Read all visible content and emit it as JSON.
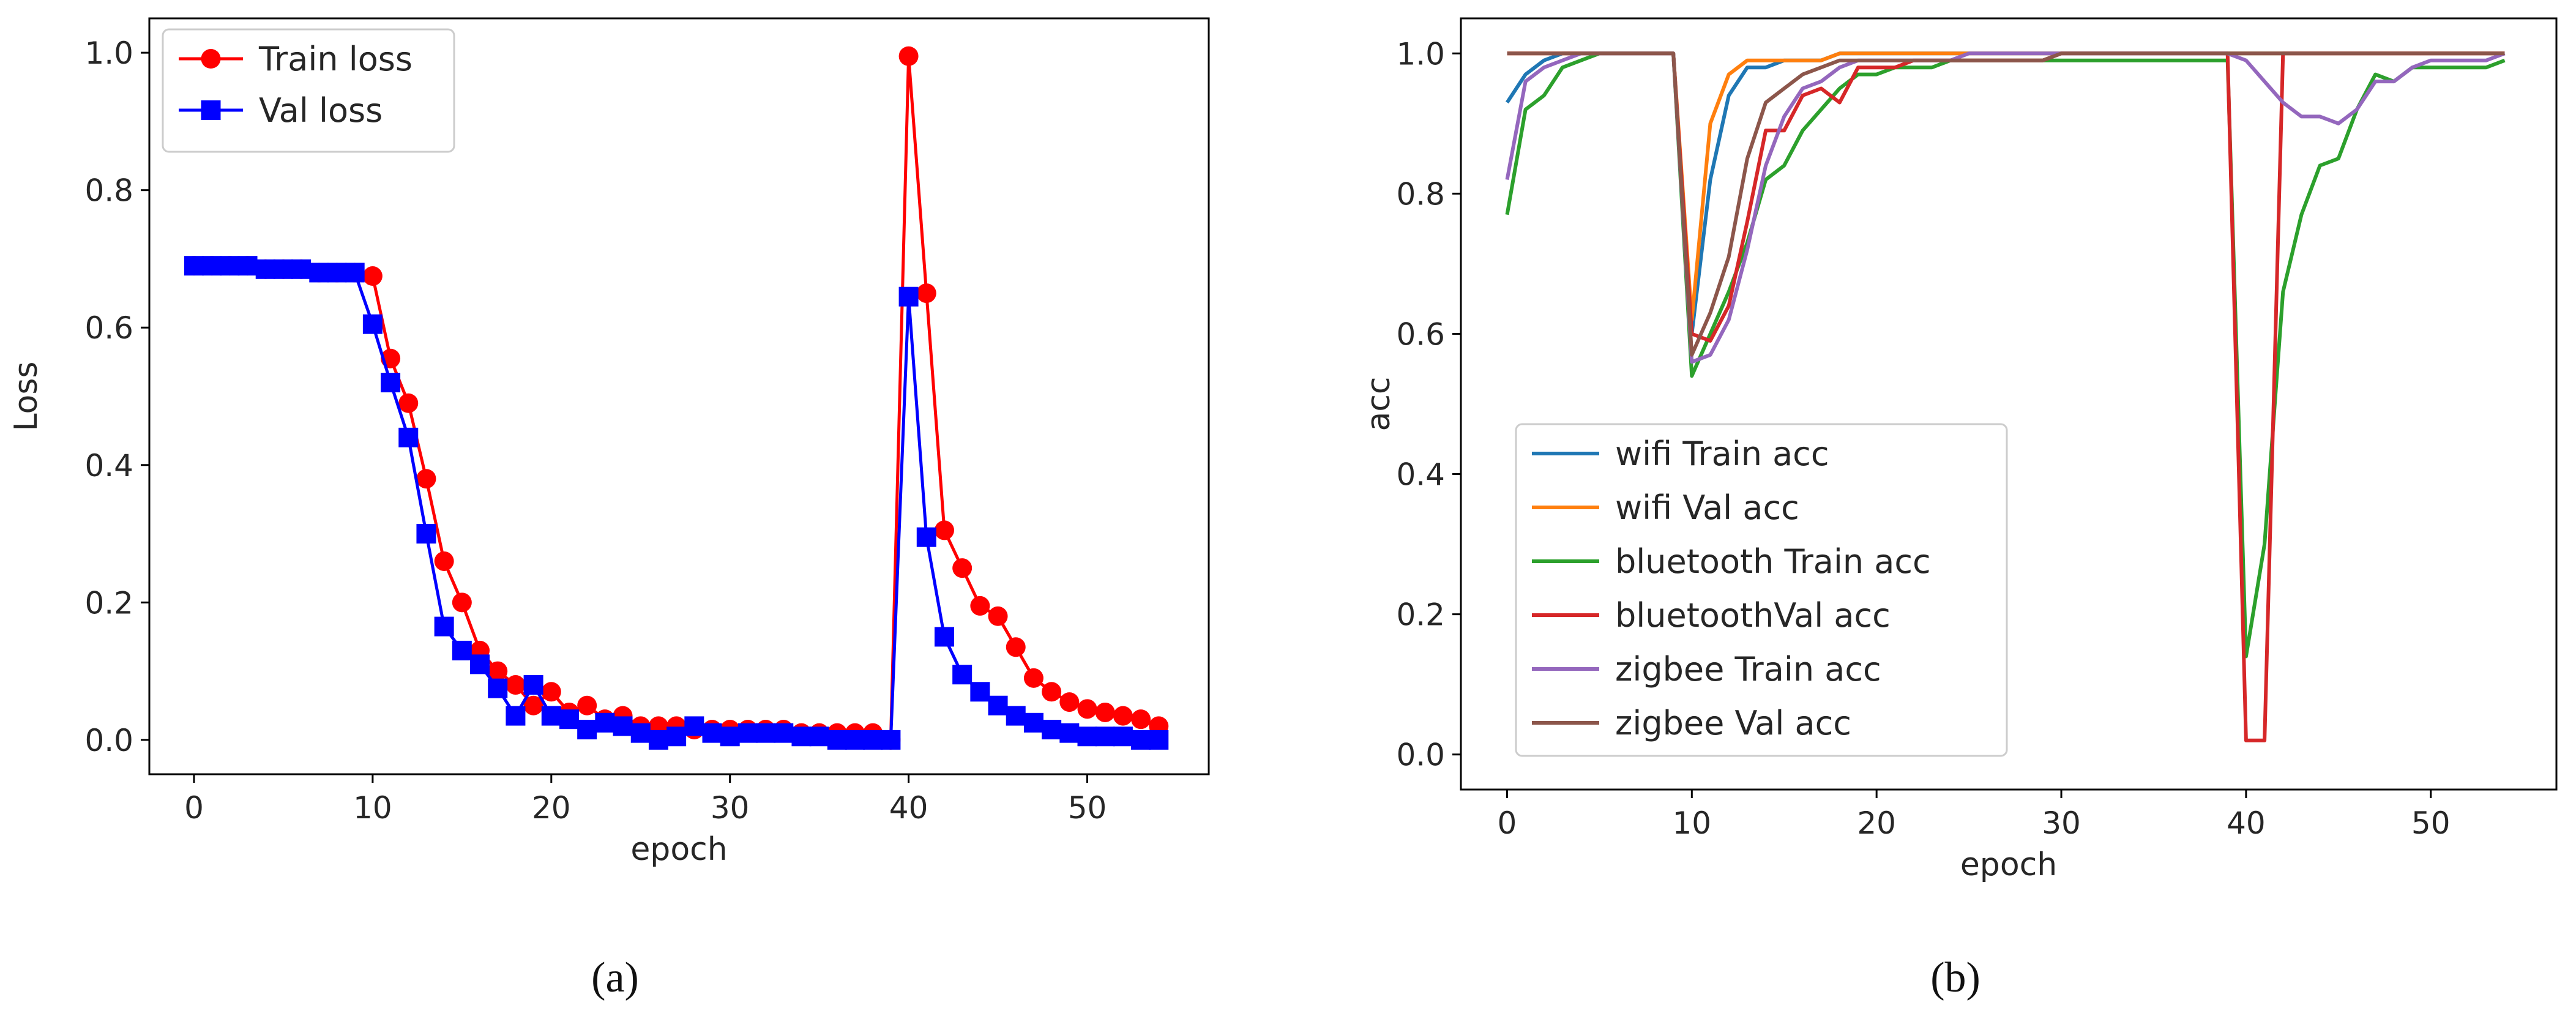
{
  "chart_data": [
    {
      "type": "line",
      "panel": "a",
      "caption": "(a)",
      "title": "",
      "xlabel": "epoch",
      "ylabel": "Loss",
      "xlim": [
        -2.5,
        56.8
      ],
      "ylim": [
        -0.05,
        1.05
      ],
      "xticks": [
        0,
        10,
        20,
        30,
        40,
        50
      ],
      "yticks": [
        0.0,
        0.2,
        0.4,
        0.6,
        0.8,
        1.0
      ],
      "ytick_labels": [
        "0.0",
        "0.2",
        "0.4",
        "0.6",
        "0.8",
        "1.0"
      ],
      "legend_position": "top-left",
      "series": [
        {
          "name": "Train loss",
          "color": "#ff0000",
          "marker": "circle",
          "x": [
            0,
            1,
            2,
            3,
            4,
            5,
            6,
            7,
            8,
            9,
            10,
            11,
            12,
            13,
            14,
            15,
            16,
            17,
            18,
            19,
            20,
            21,
            22,
            23,
            24,
            25,
            26,
            27,
            28,
            29,
            30,
            31,
            32,
            33,
            34,
            35,
            36,
            37,
            38,
            39,
            40,
            41,
            42,
            43,
            44,
            45,
            46,
            47,
            48,
            49,
            50,
            51,
            52,
            53,
            54
          ],
          "values": [
            0.69,
            0.69,
            0.69,
            0.69,
            0.685,
            0.685,
            0.685,
            0.68,
            0.68,
            0.68,
            0.675,
            0.555,
            0.49,
            0.38,
            0.26,
            0.2,
            0.13,
            0.1,
            0.08,
            0.05,
            0.07,
            0.04,
            0.05,
            0.03,
            0.035,
            0.02,
            0.02,
            0.02,
            0.015,
            0.015,
            0.015,
            0.015,
            0.015,
            0.015,
            0.01,
            0.01,
            0.01,
            0.01,
            0.01,
            0.0,
            0.995,
            0.65,
            0.305,
            0.25,
            0.195,
            0.18,
            0.135,
            0.09,
            0.07,
            0.055,
            0.045,
            0.04,
            0.035,
            0.03,
            0.02
          ]
        },
        {
          "name": "Val loss",
          "color": "#0000ff",
          "marker": "square",
          "x": [
            0,
            1,
            2,
            3,
            4,
            5,
            6,
            7,
            8,
            9,
            10,
            11,
            12,
            13,
            14,
            15,
            16,
            17,
            18,
            19,
            20,
            21,
            22,
            23,
            24,
            25,
            26,
            27,
            28,
            29,
            30,
            31,
            32,
            33,
            34,
            35,
            36,
            37,
            38,
            39,
            40,
            41,
            42,
            43,
            44,
            45,
            46,
            47,
            48,
            49,
            50,
            51,
            52,
            53,
            54
          ],
          "values": [
            0.69,
            0.69,
            0.69,
            0.69,
            0.685,
            0.685,
            0.685,
            0.68,
            0.68,
            0.68,
            0.605,
            0.52,
            0.44,
            0.3,
            0.165,
            0.13,
            0.11,
            0.075,
            0.035,
            0.08,
            0.035,
            0.03,
            0.015,
            0.025,
            0.02,
            0.01,
            0.0,
            0.005,
            0.02,
            0.01,
            0.005,
            0.01,
            0.01,
            0.01,
            0.005,
            0.005,
            0.0,
            0.0,
            0.0,
            0.0,
            0.645,
            0.295,
            0.15,
            0.095,
            0.07,
            0.05,
            0.035,
            0.025,
            0.015,
            0.01,
            0.005,
            0.005,
            0.005,
            0.0,
            0.0
          ]
        }
      ]
    },
    {
      "type": "line",
      "panel": "b",
      "caption": "(b)",
      "title": "",
      "xlabel": "epoch",
      "ylabel": "acc",
      "xlim": [
        -2.5,
        56.8
      ],
      "ylim": [
        -0.05,
        1.05
      ],
      "xticks": [
        0,
        10,
        20,
        30,
        40,
        50
      ],
      "yticks": [
        0.0,
        0.2,
        0.4,
        0.6,
        0.8,
        1.0
      ],
      "ytick_labels": [
        "0.0",
        "0.2",
        "0.4",
        "0.6",
        "0.8",
        "1.0"
      ],
      "legend_position": "lower-left",
      "series": [
        {
          "name": "wifi Train acc",
          "color": "#1f77b4",
          "x": [
            0,
            1,
            2,
            3,
            4,
            5,
            6,
            7,
            8,
            9,
            10,
            11,
            12,
            13,
            14,
            15,
            16,
            17,
            18,
            19,
            20,
            21,
            22,
            23,
            24,
            25,
            26,
            27,
            28,
            29,
            30,
            31,
            32,
            33,
            34,
            35,
            36,
            37,
            38,
            39,
            40,
            41,
            42,
            43,
            44,
            45,
            46,
            47,
            48,
            49,
            50,
            51,
            52,
            53,
            54
          ],
          "values": [
            0.93,
            0.97,
            0.99,
            1.0,
            1.0,
            1.0,
            1.0,
            1.0,
            1.0,
            1.0,
            0.6,
            0.82,
            0.94,
            0.98,
            0.98,
            0.99,
            0.99,
            0.99,
            1.0,
            1.0,
            1.0,
            1.0,
            1.0,
            1.0,
            1.0,
            1.0,
            1.0,
            1.0,
            1.0,
            1.0,
            1.0,
            1.0,
            1.0,
            1.0,
            1.0,
            1.0,
            1.0,
            1.0,
            1.0,
            1.0,
            1.0,
            1.0,
            1.0,
            1.0,
            1.0,
            1.0,
            1.0,
            1.0,
            1.0,
            1.0,
            1.0,
            1.0,
            1.0,
            1.0,
            1.0
          ]
        },
        {
          "name": "wifi Val acc",
          "color": "#ff7f0e",
          "x": [
            0,
            1,
            2,
            3,
            4,
            5,
            6,
            7,
            8,
            9,
            10,
            11,
            12,
            13,
            14,
            15,
            16,
            17,
            18,
            19,
            20,
            21,
            22,
            23,
            24,
            25,
            26,
            27,
            28,
            29,
            30,
            31,
            32,
            33,
            34,
            35,
            36,
            37,
            38,
            39,
            40,
            41,
            42,
            43,
            44,
            45,
            46,
            47,
            48,
            49,
            50,
            51,
            52,
            53,
            54
          ],
          "values": [
            1.0,
            1.0,
            1.0,
            1.0,
            1.0,
            1.0,
            1.0,
            1.0,
            1.0,
            1.0,
            0.62,
            0.9,
            0.97,
            0.99,
            0.99,
            0.99,
            0.99,
            0.99,
            1.0,
            1.0,
            1.0,
            1.0,
            1.0,
            1.0,
            1.0,
            1.0,
            1.0,
            1.0,
            1.0,
            1.0,
            1.0,
            1.0,
            1.0,
            1.0,
            1.0,
            1.0,
            1.0,
            1.0,
            1.0,
            1.0,
            1.0,
            1.0,
            1.0,
            1.0,
            1.0,
            1.0,
            1.0,
            1.0,
            1.0,
            1.0,
            1.0,
            1.0,
            1.0,
            1.0,
            1.0
          ]
        },
        {
          "name": "bluetooth Train acc",
          "color": "#2ca02c",
          "x": [
            0,
            1,
            2,
            3,
            4,
            5,
            6,
            7,
            8,
            9,
            10,
            11,
            12,
            13,
            14,
            15,
            16,
            17,
            18,
            19,
            20,
            21,
            22,
            23,
            24,
            25,
            26,
            27,
            28,
            29,
            30,
            31,
            32,
            33,
            34,
            35,
            36,
            37,
            38,
            39,
            40,
            41,
            42,
            43,
            44,
            45,
            46,
            47,
            48,
            49,
            50,
            51,
            52,
            53,
            54
          ],
          "values": [
            0.77,
            0.92,
            0.94,
            0.98,
            0.99,
            1.0,
            1.0,
            1.0,
            1.0,
            1.0,
            0.54,
            0.6,
            0.66,
            0.73,
            0.82,
            0.84,
            0.89,
            0.92,
            0.95,
            0.97,
            0.97,
            0.98,
            0.98,
            0.98,
            0.99,
            0.99,
            0.99,
            0.99,
            0.99,
            0.99,
            0.99,
            0.99,
            0.99,
            0.99,
            0.99,
            0.99,
            0.99,
            0.99,
            0.99,
            0.99,
            0.14,
            0.3,
            0.66,
            0.77,
            0.84,
            0.85,
            0.92,
            0.97,
            0.96,
            0.98,
            0.98,
            0.98,
            0.98,
            0.98,
            0.99
          ]
        },
        {
          "name": "bluetoothVal acc",
          "color": "#d62728",
          "x": [
            0,
            1,
            2,
            3,
            4,
            5,
            6,
            7,
            8,
            9,
            10,
            11,
            12,
            13,
            14,
            15,
            16,
            17,
            18,
            19,
            20,
            21,
            22,
            23,
            24,
            25,
            26,
            27,
            28,
            29,
            30,
            31,
            32,
            33,
            34,
            35,
            36,
            37,
            38,
            39,
            40,
            41,
            42,
            43,
            44,
            45,
            46,
            47,
            48,
            49,
            50,
            51,
            52,
            53,
            54
          ],
          "values": [
            1.0,
            1.0,
            1.0,
            1.0,
            1.0,
            1.0,
            1.0,
            1.0,
            1.0,
            1.0,
            0.6,
            0.59,
            0.64,
            0.76,
            0.89,
            0.89,
            0.94,
            0.95,
            0.93,
            0.98,
            0.98,
            0.98,
            0.99,
            0.99,
            0.99,
            0.99,
            0.99,
            0.99,
            0.99,
            0.99,
            1.0,
            1.0,
            1.0,
            1.0,
            1.0,
            1.0,
            1.0,
            1.0,
            1.0,
            1.0,
            0.02,
            0.02,
            1.0,
            1.0,
            1.0,
            1.0,
            1.0,
            1.0,
            1.0,
            1.0,
            1.0,
            1.0,
            1.0,
            1.0,
            1.0
          ]
        },
        {
          "name": "zigbee Train acc",
          "color": "#9467bd",
          "x": [
            0,
            1,
            2,
            3,
            4,
            5,
            6,
            7,
            8,
            9,
            10,
            11,
            12,
            13,
            14,
            15,
            16,
            17,
            18,
            19,
            20,
            21,
            22,
            23,
            24,
            25,
            26,
            27,
            28,
            29,
            30,
            31,
            32,
            33,
            34,
            35,
            36,
            37,
            38,
            39,
            40,
            41,
            42,
            43,
            44,
            45,
            46,
            47,
            48,
            49,
            50,
            51,
            52,
            53,
            54
          ],
          "values": [
            0.82,
            0.96,
            0.98,
            0.99,
            1.0,
            1.0,
            1.0,
            1.0,
            1.0,
            1.0,
            0.56,
            0.57,
            0.62,
            0.72,
            0.84,
            0.91,
            0.95,
            0.96,
            0.98,
            0.99,
            0.99,
            0.99,
            0.99,
            0.99,
            0.99,
            1.0,
            1.0,
            1.0,
            1.0,
            1.0,
            1.0,
            1.0,
            1.0,
            1.0,
            1.0,
            1.0,
            1.0,
            1.0,
            1.0,
            1.0,
            0.99,
            0.96,
            0.93,
            0.91,
            0.91,
            0.9,
            0.92,
            0.96,
            0.96,
            0.98,
            0.99,
            0.99,
            0.99,
            0.99,
            1.0
          ]
        },
        {
          "name": "zigbee Val acc",
          "color": "#8c564b",
          "x": [
            0,
            1,
            2,
            3,
            4,
            5,
            6,
            7,
            8,
            9,
            10,
            11,
            12,
            13,
            14,
            15,
            16,
            17,
            18,
            19,
            20,
            21,
            22,
            23,
            24,
            25,
            26,
            27,
            28,
            29,
            30,
            31,
            32,
            33,
            34,
            35,
            36,
            37,
            38,
            39,
            40,
            41,
            42,
            43,
            44,
            45,
            46,
            47,
            48,
            49,
            50,
            51,
            52,
            53,
            54
          ],
          "values": [
            1.0,
            1.0,
            1.0,
            1.0,
            1.0,
            1.0,
            1.0,
            1.0,
            1.0,
            1.0,
            0.57,
            0.63,
            0.71,
            0.85,
            0.93,
            0.95,
            0.97,
            0.98,
            0.99,
            0.99,
            0.99,
            0.99,
            0.99,
            0.99,
            0.99,
            0.99,
            0.99,
            0.99,
            0.99,
            0.99,
            1.0,
            1.0,
            1.0,
            1.0,
            1.0,
            1.0,
            1.0,
            1.0,
            1.0,
            1.0,
            1.0,
            1.0,
            1.0,
            1.0,
            1.0,
            1.0,
            1.0,
            1.0,
            1.0,
            1.0,
            1.0,
            1.0,
            1.0,
            1.0,
            1.0
          ]
        }
      ]
    }
  ]
}
